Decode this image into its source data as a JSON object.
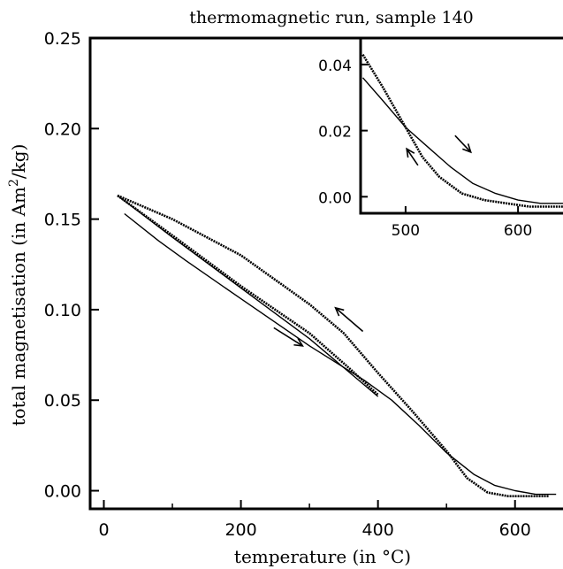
{
  "chart_data": [
    {
      "type": "line",
      "title": "thermomagnetic run, sample 140",
      "xlabel": "temperature (in °C)",
      "ylabel_parts": [
        "total magnetisation (in Am",
        "2",
        "/kg)"
      ],
      "xlim": [
        -20,
        670
      ],
      "ylim": [
        -0.01,
        0.25
      ],
      "xticks": [
        0,
        200,
        400,
        600
      ],
      "xtick_labels": [
        "0",
        "200",
        "400",
        "600"
      ],
      "yticks": [
        0.0,
        0.05,
        0.1,
        0.15,
        0.2,
        0.25
      ],
      "ytick_labels": [
        "0.00",
        "0.05",
        "0.10",
        "0.15",
        "0.20",
        "0.25"
      ],
      "series": [
        {
          "line_style": "solid",
          "x": [
            30,
            80,
            120,
            200,
            300,
            380,
            420,
            460,
            500,
            540,
            570,
            600,
            630,
            660
          ],
          "y": [
            0.153,
            0.138,
            0.127,
            0.106,
            0.08,
            0.061,
            0.05,
            0.036,
            0.021,
            0.009,
            0.003,
            0.0,
            -0.002,
            -0.002
          ]
        },
        {
          "line_style": "dotted",
          "x": [
            20,
            100,
            200,
            300,
            350,
            400,
            450,
            500,
            530,
            560,
            590,
            620,
            650
          ],
          "y": [
            0.163,
            0.15,
            0.13,
            0.103,
            0.087,
            0.065,
            0.044,
            0.022,
            0.007,
            -0.001,
            -0.003,
            -0.003,
            -0.003
          ]
        },
        {
          "line_style": "solid",
          "x": [
            20,
            100,
            200,
            300,
            400
          ],
          "y": [
            0.163,
            0.14,
            0.112,
            0.084,
            0.052
          ]
        },
        {
          "line_style": "dotted",
          "x": [
            20,
            100,
            200,
            300,
            360,
            400
          ],
          "y": [
            0.163,
            0.141,
            0.113,
            0.087,
            0.067,
            0.053
          ]
        }
      ],
      "annotations": [
        {
          "type": "arrow",
          "direction": "heating",
          "from": [
            248,
            0.09
          ],
          "to": [
            290,
            0.08
          ]
        },
        {
          "type": "arrow",
          "direction": "cooling",
          "from": [
            378,
            0.088
          ],
          "to": [
            338,
            0.101
          ]
        }
      ]
    },
    {
      "type": "line",
      "inset": true,
      "xlim": [
        460,
        640
      ],
      "ylim": [
        -0.005,
        0.048
      ],
      "xticks": [
        500,
        600
      ],
      "xtick_labels": [
        "500",
        "600"
      ],
      "yticks": [
        0.0,
        0.02,
        0.04
      ],
      "ytick_labels": [
        "0.00",
        "0.02",
        "0.04"
      ],
      "series": [
        {
          "line_style": "solid",
          "x": [
            462,
            480,
            500,
            520,
            540,
            560,
            580,
            600,
            620,
            640
          ],
          "y": [
            0.036,
            0.029,
            0.021,
            0.015,
            0.009,
            0.004,
            0.001,
            -0.001,
            -0.002,
            -0.002
          ]
        },
        {
          "line_style": "dotted",
          "x": [
            462,
            480,
            500,
            515,
            530,
            550,
            570,
            590,
            610,
            640
          ],
          "y": [
            0.043,
            0.033,
            0.021,
            0.012,
            0.006,
            0.001,
            -0.001,
            -0.002,
            -0.003,
            -0.003
          ]
        }
      ],
      "annotations": [
        {
          "type": "arrow",
          "direction": "heating",
          "from": [
            544,
            0.0185
          ],
          "to": [
            558,
            0.0135
          ]
        },
        {
          "type": "arrow",
          "direction": "cooling",
          "from": [
            511,
            0.0095
          ],
          "to": [
            501,
            0.0145
          ]
        }
      ]
    }
  ]
}
